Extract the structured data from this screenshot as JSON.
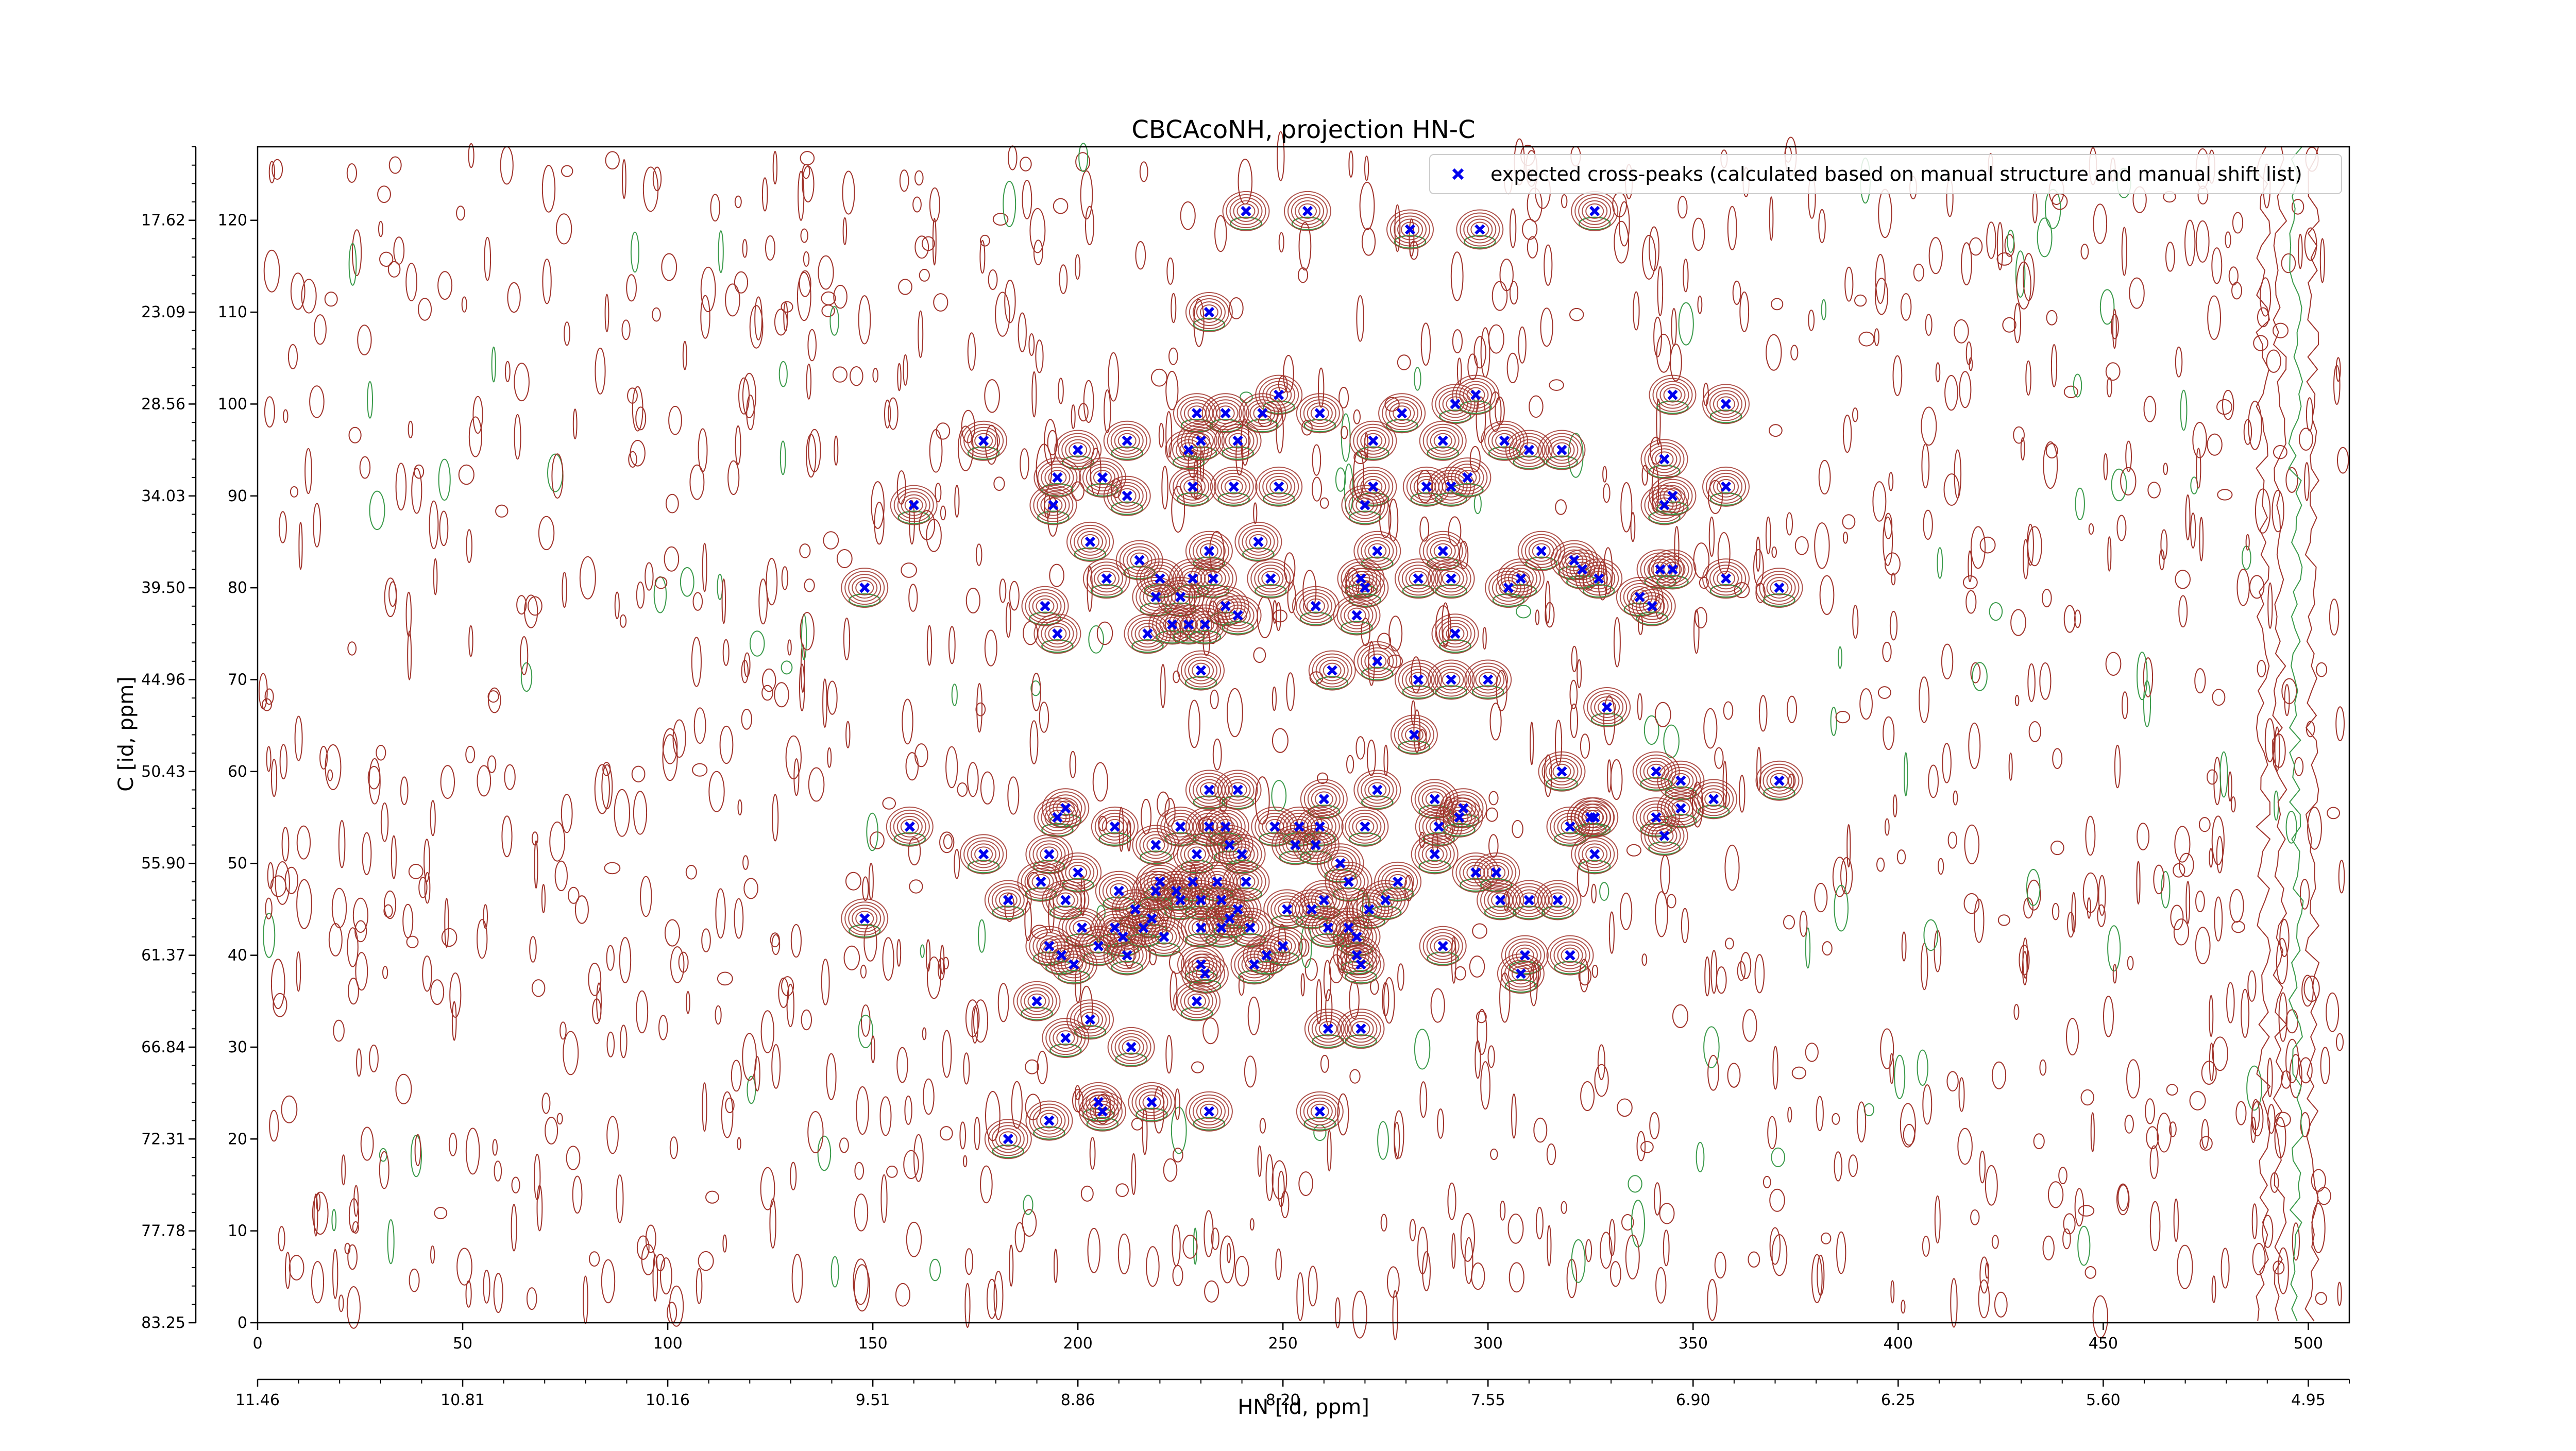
{
  "chart_data": {
    "type": "scatter",
    "title": "CBCAcoNH, projection HN-C",
    "xlabel": "HN [id, ppm]",
    "ylabel": "C [id, ppm]",
    "xlim": [
      0,
      510
    ],
    "ylim": [
      0,
      128
    ],
    "grid": false,
    "legend_position": "top-right",
    "colors": {
      "marker": "#0000ee",
      "contour_positive": "#a0322a",
      "contour_negative": "#3a9a4a"
    },
    "x_ticks": [
      0,
      50,
      100,
      150,
      200,
      250,
      300,
      350,
      400,
      450,
      500
    ],
    "y_ticks": [
      0,
      10,
      20,
      30,
      40,
      50,
      60,
      70,
      80,
      90,
      100,
      110,
      120
    ],
    "x_ppm_tick_labels": [
      "11.46",
      "10.81",
      "10.16",
      "9.51",
      "8.86",
      "8.20",
      "7.55",
      "6.90",
      "6.25",
      "5.60",
      "4.95"
    ],
    "y_ppm_tick_labels": [
      "83.25",
      "77.78",
      "72.31",
      "66.84",
      "61.37",
      "55.90",
      "50.43",
      "44.96",
      "39.50",
      "34.03",
      "28.56",
      "23.09",
      "17.62"
    ],
    "series": [
      {
        "name": "expected cross-peaks (calculated based on manual structure and manual shift list)",
        "marker": "x",
        "points": [
          [
            241,
            121
          ],
          [
            256,
            121
          ],
          [
            281,
            119
          ],
          [
            298,
            119
          ],
          [
            326,
            121
          ],
          [
            232,
            110
          ],
          [
            249,
            101
          ],
          [
            229,
            99
          ],
          [
            236,
            99
          ],
          [
            245,
            99
          ],
          [
            259,
            99
          ],
          [
            279,
            99
          ],
          [
            292,
            100
          ],
          [
            297,
            101
          ],
          [
            345,
            101
          ],
          [
            358,
            100
          ],
          [
            177,
            96
          ],
          [
            200,
            95
          ],
          [
            212,
            96
          ],
          [
            230,
            96
          ],
          [
            239,
            96
          ],
          [
            227,
            95
          ],
          [
            272,
            96
          ],
          [
            289,
            96
          ],
          [
            304,
            96
          ],
          [
            310,
            95
          ],
          [
            318,
            95
          ],
          [
            195,
            92
          ],
          [
            206,
            92
          ],
          [
            212,
            90
          ],
          [
            228,
            91
          ],
          [
            238,
            91
          ],
          [
            249,
            91
          ],
          [
            272,
            91
          ],
          [
            285,
            91
          ],
          [
            291,
            91
          ],
          [
            295,
            92
          ],
          [
            343,
            94
          ],
          [
            358,
            91
          ],
          [
            160,
            89
          ],
          [
            194,
            89
          ],
          [
            270,
            89
          ],
          [
            343,
            89
          ],
          [
            345,
            90
          ],
          [
            203,
            85
          ],
          [
            215,
            83
          ],
          [
            232,
            84
          ],
          [
            244,
            85
          ],
          [
            273,
            84
          ],
          [
            289,
            84
          ],
          [
            313,
            84
          ],
          [
            321,
            83
          ],
          [
            148,
            80
          ],
          [
            207,
            81
          ],
          [
            220,
            81
          ],
          [
            228,
            81
          ],
          [
            233,
            81
          ],
          [
            247,
            81
          ],
          [
            269,
            81
          ],
          [
            283,
            81
          ],
          [
            291,
            81
          ],
          [
            308,
            81
          ],
          [
            323,
            82
          ],
          [
            327,
            81
          ],
          [
            342,
            82
          ],
          [
            345,
            82
          ],
          [
            358,
            81
          ],
          [
            371,
            80
          ],
          [
            192,
            78
          ],
          [
            219,
            79
          ],
          [
            225,
            79
          ],
          [
            236,
            78
          ],
          [
            258,
            78
          ],
          [
            270,
            80
          ],
          [
            305,
            80
          ],
          [
            337,
            79
          ],
          [
            340,
            78
          ],
          [
            195,
            75
          ],
          [
            217,
            75
          ],
          [
            223,
            76
          ],
          [
            227,
            76
          ],
          [
            231,
            76
          ],
          [
            239,
            77
          ],
          [
            268,
            77
          ],
          [
            292,
            75
          ],
          [
            230,
            71
          ],
          [
            262,
            71
          ],
          [
            273,
            72
          ],
          [
            283,
            70
          ],
          [
            291,
            70
          ],
          [
            300,
            70
          ],
          [
            329,
            67
          ],
          [
            282,
            64
          ],
          [
            318,
            60
          ],
          [
            341,
            60
          ],
          [
            347,
            59
          ],
          [
            197,
            56
          ],
          [
            232,
            58
          ],
          [
            239,
            58
          ],
          [
            260,
            57
          ],
          [
            273,
            58
          ],
          [
            287,
            57
          ],
          [
            294,
            56
          ],
          [
            355,
            57
          ],
          [
            371,
            59
          ],
          [
            159,
            54
          ],
          [
            195,
            55
          ],
          [
            209,
            54
          ],
          [
            225,
            54
          ],
          [
            232,
            54
          ],
          [
            236,
            54
          ],
          [
            248,
            54
          ],
          [
            254,
            54
          ],
          [
            259,
            54
          ],
          [
            270,
            54
          ],
          [
            288,
            54
          ],
          [
            293,
            55
          ],
          [
            326,
            55
          ],
          [
            325,
            55
          ],
          [
            347,
            56
          ],
          [
            320,
            54
          ],
          [
            341,
            55
          ],
          [
            177,
            51
          ],
          [
            193,
            51
          ],
          [
            219,
            52
          ],
          [
            229,
            51
          ],
          [
            237,
            52
          ],
          [
            240,
            51
          ],
          [
            253,
            52
          ],
          [
            258,
            52
          ],
          [
            264,
            50
          ],
          [
            287,
            51
          ],
          [
            326,
            51
          ],
          [
            343,
            53
          ],
          [
            191,
            48
          ],
          [
            200,
            49
          ],
          [
            210,
            47
          ],
          [
            220,
            48
          ],
          [
            224,
            47
          ],
          [
            228,
            48
          ],
          [
            234,
            48
          ],
          [
            241,
            48
          ],
          [
            266,
            48
          ],
          [
            297,
            49
          ],
          [
            302,
            49
          ],
          [
            303,
            46
          ],
          [
            183,
            46
          ],
          [
            197,
            46
          ],
          [
            214,
            45
          ],
          [
            219,
            47
          ],
          [
            225,
            46
          ],
          [
            230,
            46
          ],
          [
            235,
            46
          ],
          [
            239,
            45
          ],
          [
            260,
            46
          ],
          [
            271,
            45
          ],
          [
            275,
            46
          ],
          [
            310,
            46
          ],
          [
            317,
            46
          ],
          [
            148,
            44
          ],
          [
            218,
            44
          ],
          [
            235,
            43
          ],
          [
            237,
            44
          ],
          [
            251,
            45
          ],
          [
            257,
            45
          ],
          [
            266,
            43
          ],
          [
            278,
            48
          ],
          [
            201,
            43
          ],
          [
            209,
            43
          ],
          [
            211,
            42
          ],
          [
            216,
            43
          ],
          [
            221,
            42
          ],
          [
            230,
            43
          ],
          [
            242,
            43
          ],
          [
            261,
            43
          ],
          [
            268,
            42
          ],
          [
            193,
            41
          ],
          [
            196,
            40
          ],
          [
            205,
            41
          ],
          [
            212,
            40
          ],
          [
            250,
            41
          ],
          [
            268,
            40
          ],
          [
            289,
            41
          ],
          [
            309,
            40
          ],
          [
            320,
            40
          ],
          [
            199,
            39
          ],
          [
            230,
            39
          ],
          [
            243,
            39
          ],
          [
            246,
            40
          ],
          [
            269,
            39
          ],
          [
            231,
            38
          ],
          [
            308,
            38
          ],
          [
            190,
            35
          ],
          [
            203,
            33
          ],
          [
            229,
            35
          ],
          [
            197,
            31
          ],
          [
            213,
            30
          ],
          [
            261,
            32
          ],
          [
            269,
            32
          ],
          [
            205,
            24
          ],
          [
            218,
            24
          ],
          [
            232,
            23
          ],
          [
            259,
            23
          ],
          [
            193,
            22
          ],
          [
            206,
            23
          ],
          [
            183,
            20
          ]
        ]
      }
    ]
  }
}
